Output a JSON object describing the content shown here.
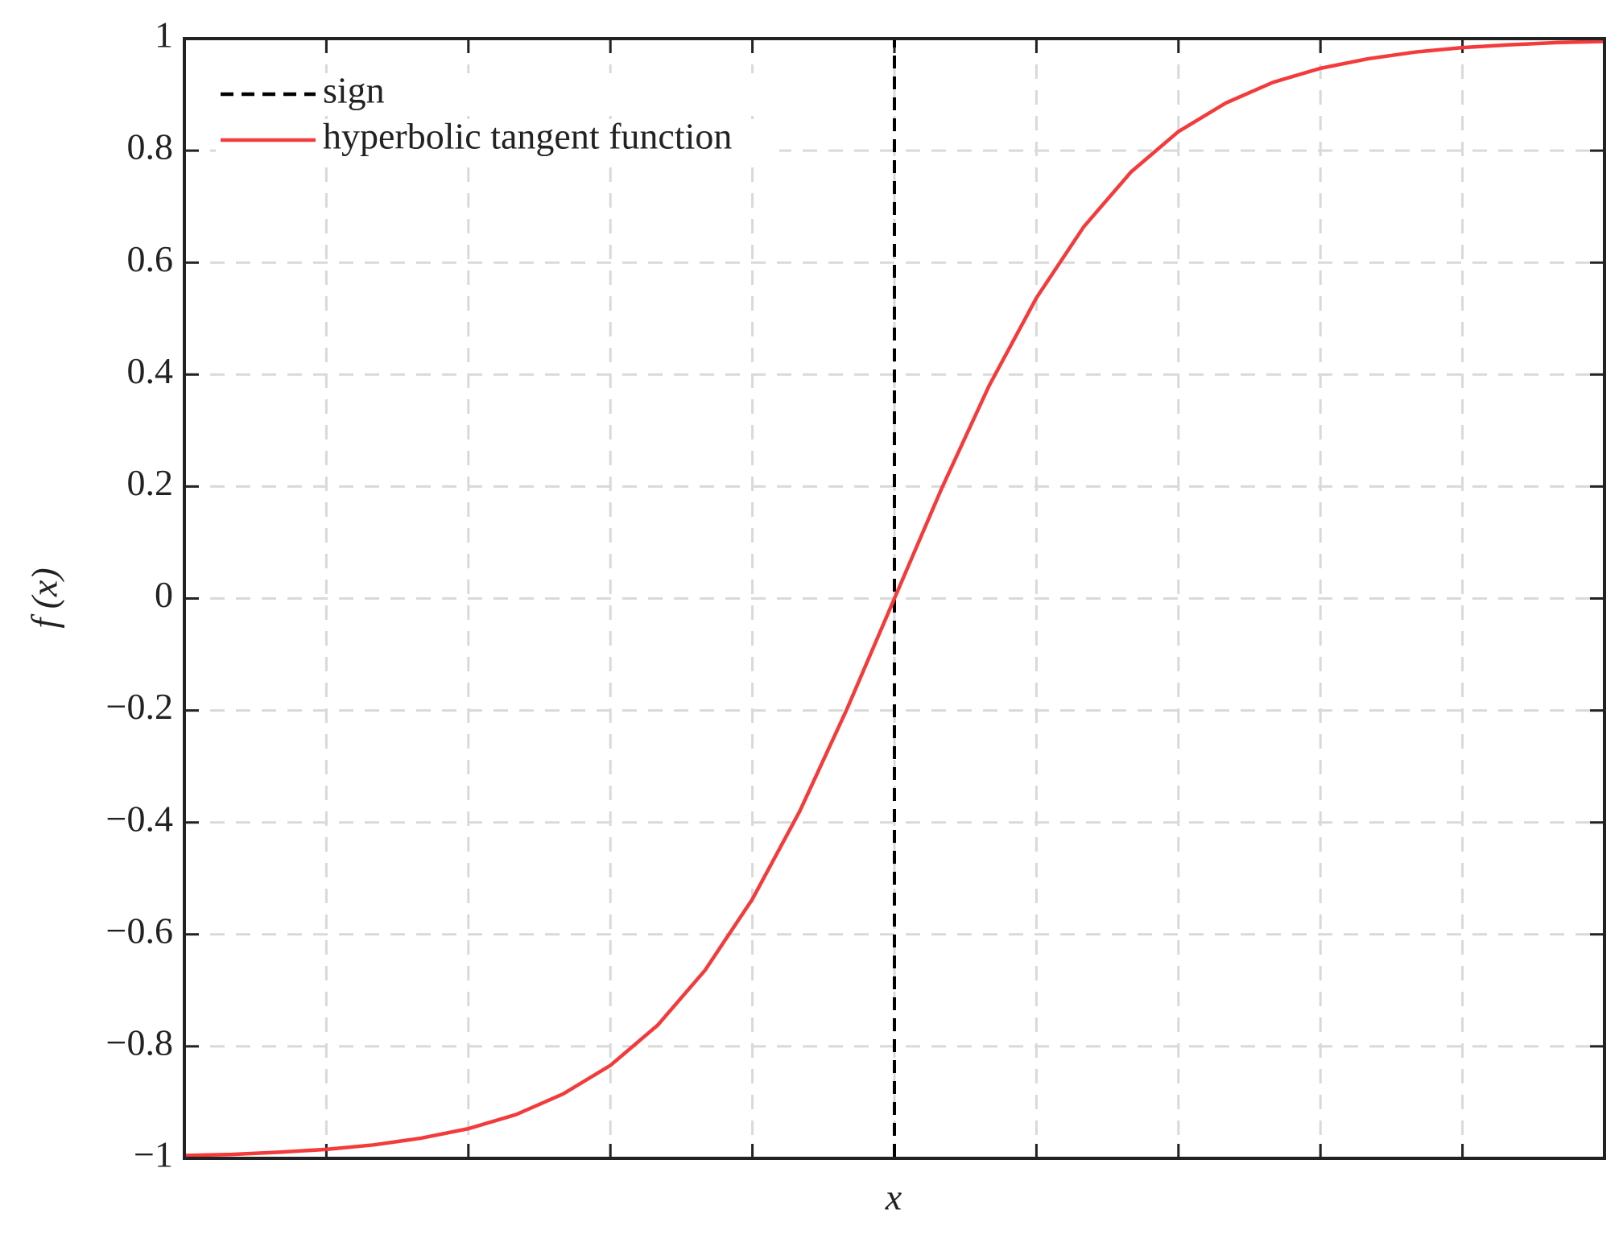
{
  "chart_data": {
    "type": "line",
    "x_label": "x",
    "y_label": "f (x)",
    "xlim": [
      -3,
      3
    ],
    "ylim": [
      -1,
      1
    ],
    "xticks": [
      -3,
      -2.4,
      -1.8,
      -1.2,
      -0.6,
      0,
      0.6,
      1.2,
      1.8,
      2.4,
      3
    ],
    "yticks": [
      {
        "value": -1,
        "label": "−1"
      },
      {
        "value": -0.8,
        "label": "−0.8"
      },
      {
        "value": -0.6,
        "label": "−0.6"
      },
      {
        "value": -0.4,
        "label": "−0.4"
      },
      {
        "value": -0.2,
        "label": "−0.2"
      },
      0,
      0.2,
      0.4,
      0.6,
      0.8,
      1
    ],
    "grid": true,
    "legend": "upper left",
    "series": [
      {
        "name": "sign",
        "color": "#000000",
        "dashed": true,
        "x": [
          -3,
          0,
          0,
          3
        ],
        "values": [
          -1,
          -1,
          1,
          1
        ]
      },
      {
        "name": "hyperbolic tangent function",
        "color": "#f33b3b",
        "dashed": false,
        "x": [
          -3,
          -2.8,
          -2.6,
          -2.4,
          -2.2,
          -2,
          -1.8,
          -1.6,
          -1.4,
          -1.2,
          -1,
          -0.8,
          -0.6,
          -0.4,
          -0.2,
          0,
          0.2,
          0.4,
          0.6,
          0.8,
          1,
          1.2,
          1.4,
          1.6,
          1.8,
          2,
          2.2,
          2.4,
          2.6,
          2.8,
          3
        ],
        "values": [
          -0.995,
          -0.993,
          -0.989,
          -0.984,
          -0.976,
          -0.964,
          -0.947,
          -0.922,
          -0.885,
          -0.834,
          -0.762,
          -0.664,
          -0.537,
          -0.38,
          -0.197,
          0,
          0.197,
          0.38,
          0.537,
          0.664,
          0.762,
          0.834,
          0.885,
          0.922,
          0.947,
          0.964,
          0.976,
          0.984,
          0.989,
          0.993,
          0.995
        ]
      }
    ]
  }
}
